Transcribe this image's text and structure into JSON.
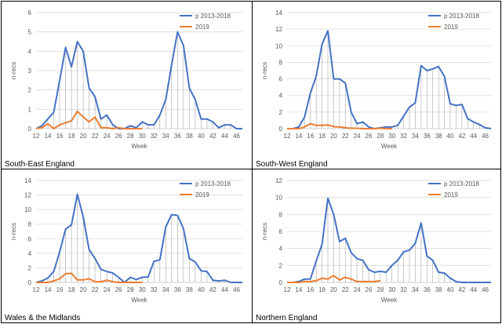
{
  "colors": {
    "series_main": "#4472C4",
    "series_2019": "#ED7D31",
    "grid": "#D9D9D9",
    "drop": "#A6A6A6",
    "axis": "#BFBFBF",
    "text": "#595959"
  },
  "chart_data": [
    {
      "type": "line",
      "region": "South-East England",
      "xlabel": "Week",
      "ylabel": "n-recs",
      "xlim": [
        12,
        47
      ],
      "ylim": [
        0,
        6
      ],
      "yticks": [
        0,
        1,
        2,
        3,
        4,
        5,
        6
      ],
      "xticks": [
        12,
        14,
        16,
        18,
        20,
        22,
        24,
        26,
        28,
        30,
        32,
        34,
        36,
        38,
        40,
        42,
        44,
        46
      ],
      "legend_position": "top-right",
      "series": [
        {
          "name": "p 2013-2018",
          "x": [
            12,
            13,
            14,
            15,
            16,
            17,
            18,
            19,
            20,
            21,
            22,
            23,
            24,
            25,
            26,
            27,
            28,
            29,
            30,
            31,
            32,
            33,
            34,
            35,
            36,
            37,
            38,
            39,
            40,
            41,
            42,
            43,
            44,
            45,
            46,
            47
          ],
          "values": [
            0,
            0.15,
            0.5,
            0.85,
            2.5,
            4.2,
            3.2,
            4.5,
            4.0,
            2.1,
            1.65,
            0.5,
            0.7,
            0.2,
            0,
            0,
            0.15,
            0.05,
            0.35,
            0.2,
            0.2,
            0.7,
            1.5,
            3.3,
            5.0,
            4.3,
            2.1,
            1.5,
            0.5,
            0.5,
            0.35,
            0.05,
            0.2,
            0.2,
            0,
            0
          ]
        },
        {
          "name": "2019",
          "x": [
            12,
            13,
            14,
            15,
            16,
            17,
            18,
            19,
            20,
            21,
            22,
            23,
            24,
            25,
            26,
            27,
            28,
            29,
            30
          ],
          "values": [
            0,
            0.05,
            0.25,
            0,
            0.2,
            0.3,
            0.4,
            0.9,
            0.6,
            0.35,
            0.6,
            0.05,
            0.05,
            0,
            0.05,
            0,
            0,
            0,
            0
          ]
        }
      ]
    },
    {
      "type": "line",
      "region": "South-West England",
      "xlabel": "Week",
      "ylabel": "n-recs",
      "xlim": [
        12,
        47
      ],
      "ylim": [
        0,
        14
      ],
      "yticks": [
        0,
        2,
        4,
        6,
        8,
        10,
        12,
        14
      ],
      "xticks": [
        12,
        14,
        16,
        18,
        20,
        22,
        24,
        26,
        28,
        30,
        32,
        34,
        36,
        38,
        40,
        42,
        44,
        46
      ],
      "legend_position": "top-right",
      "series": [
        {
          "name": "p 2013-2018",
          "x": [
            12,
            13,
            14,
            15,
            16,
            17,
            18,
            19,
            20,
            21,
            22,
            23,
            24,
            25,
            26,
            27,
            28,
            29,
            30,
            31,
            32,
            33,
            34,
            35,
            36,
            37,
            38,
            39,
            40,
            41,
            42,
            43,
            44,
            45,
            46,
            47
          ],
          "values": [
            0,
            0,
            0.2,
            1.4,
            4.3,
            6.3,
            10.2,
            11.8,
            6.0,
            6.0,
            5.5,
            2.0,
            0.6,
            0.8,
            0.2,
            0,
            0.1,
            0.2,
            0.2,
            0.4,
            1.5,
            2.6,
            3.1,
            7.6,
            7.0,
            7.2,
            7.5,
            6.3,
            3.0,
            2.8,
            2.9,
            1.2,
            0.8,
            0.5,
            0.1,
            0
          ]
        },
        {
          "name": "2019",
          "x": [
            12,
            13,
            14,
            15,
            16,
            17,
            18,
            19,
            20,
            21,
            22,
            23,
            24,
            25,
            26,
            27,
            28,
            29,
            30
          ],
          "values": [
            0,
            0,
            0,
            0.2,
            0.6,
            0.4,
            0.4,
            0.45,
            0.25,
            0.2,
            0.1,
            0.05,
            0.05,
            0,
            0,
            0,
            0.05,
            0,
            0
          ]
        }
      ]
    },
    {
      "type": "line",
      "region": "Wales & the Midlands",
      "xlabel": "Week",
      "ylabel": "n-recs",
      "xlim": [
        12,
        47
      ],
      "ylim": [
        0,
        14
      ],
      "yticks": [
        0,
        2,
        4,
        6,
        8,
        10,
        12,
        14
      ],
      "xticks": [
        12,
        14,
        16,
        18,
        20,
        22,
        24,
        26,
        28,
        30,
        32,
        34,
        36,
        38,
        40,
        42,
        44,
        46
      ],
      "legend_position": "top-right",
      "series": [
        {
          "name": "p 2013-2018",
          "x": [
            12,
            13,
            14,
            15,
            16,
            17,
            18,
            19,
            20,
            21,
            22,
            23,
            24,
            25,
            26,
            27,
            28,
            29,
            30,
            31,
            32,
            33,
            34,
            35,
            36,
            37,
            38,
            39,
            40,
            41,
            42,
            43,
            44,
            45,
            46,
            47
          ],
          "values": [
            0,
            0.2,
            0.6,
            1.5,
            4.2,
            7.3,
            7.9,
            12.1,
            9.0,
            4.5,
            3.3,
            1.8,
            1.5,
            1.3,
            0.7,
            0,
            0.7,
            0.4,
            0.7,
            0.75,
            2.9,
            3.1,
            7.6,
            9.3,
            9.2,
            7.4,
            3.3,
            2.8,
            1.6,
            1.5,
            0.3,
            0.2,
            0.3,
            0,
            0,
            0
          ]
        },
        {
          "name": "2019",
          "x": [
            12,
            13,
            14,
            15,
            16,
            17,
            18,
            19,
            20,
            21,
            22,
            23,
            24,
            25,
            26,
            27,
            28,
            29,
            30
          ],
          "values": [
            0,
            0,
            0,
            0.2,
            0.5,
            1.2,
            1.25,
            0.35,
            0.35,
            0.5,
            0.1,
            0.1,
            0.3,
            0.1,
            0,
            0,
            0,
            0,
            0
          ]
        }
      ]
    },
    {
      "type": "line",
      "region": "Northern England",
      "xlabel": "Week",
      "ylabel": "n-recs",
      "xlim": [
        12,
        47
      ],
      "ylim": [
        0,
        12
      ],
      "yticks": [
        0,
        2,
        4,
        6,
        8,
        10,
        12
      ],
      "xticks": [
        12,
        14,
        16,
        18,
        20,
        22,
        24,
        26,
        28,
        30,
        32,
        34,
        36,
        38,
        40,
        42,
        44,
        46
      ],
      "legend_position": "top-right",
      "series": [
        {
          "name": "p 2013-2018",
          "x": [
            12,
            13,
            14,
            15,
            16,
            17,
            18,
            19,
            20,
            21,
            22,
            23,
            24,
            25,
            26,
            27,
            28,
            29,
            30,
            31,
            32,
            33,
            34,
            35,
            36,
            37,
            38,
            39,
            40,
            41,
            42,
            43,
            44,
            45,
            46,
            47
          ],
          "values": [
            0,
            0,
            0.1,
            0.4,
            0.4,
            2.5,
            4.5,
            9.9,
            8.0,
            4.8,
            5.2,
            3.5,
            2.8,
            2.6,
            1.5,
            1.2,
            1.3,
            1.2,
            2.0,
            2.6,
            3.6,
            3.8,
            4.6,
            7.0,
            3.1,
            2.6,
            1.2,
            1.1,
            0.5,
            0.1,
            0,
            0,
            0,
            0,
            0,
            0
          ]
        },
        {
          "name": "2019",
          "x": [
            12,
            13,
            14,
            15,
            16,
            17,
            18,
            19,
            20,
            21,
            22,
            23,
            24,
            25,
            26,
            27,
            28
          ],
          "values": [
            0,
            0,
            0,
            0.1,
            0.1,
            0.2,
            0.5,
            0.4,
            0.8,
            0.3,
            0.6,
            0.4,
            0.1,
            0.1,
            0.1,
            0.1,
            0.2
          ]
        }
      ]
    }
  ]
}
